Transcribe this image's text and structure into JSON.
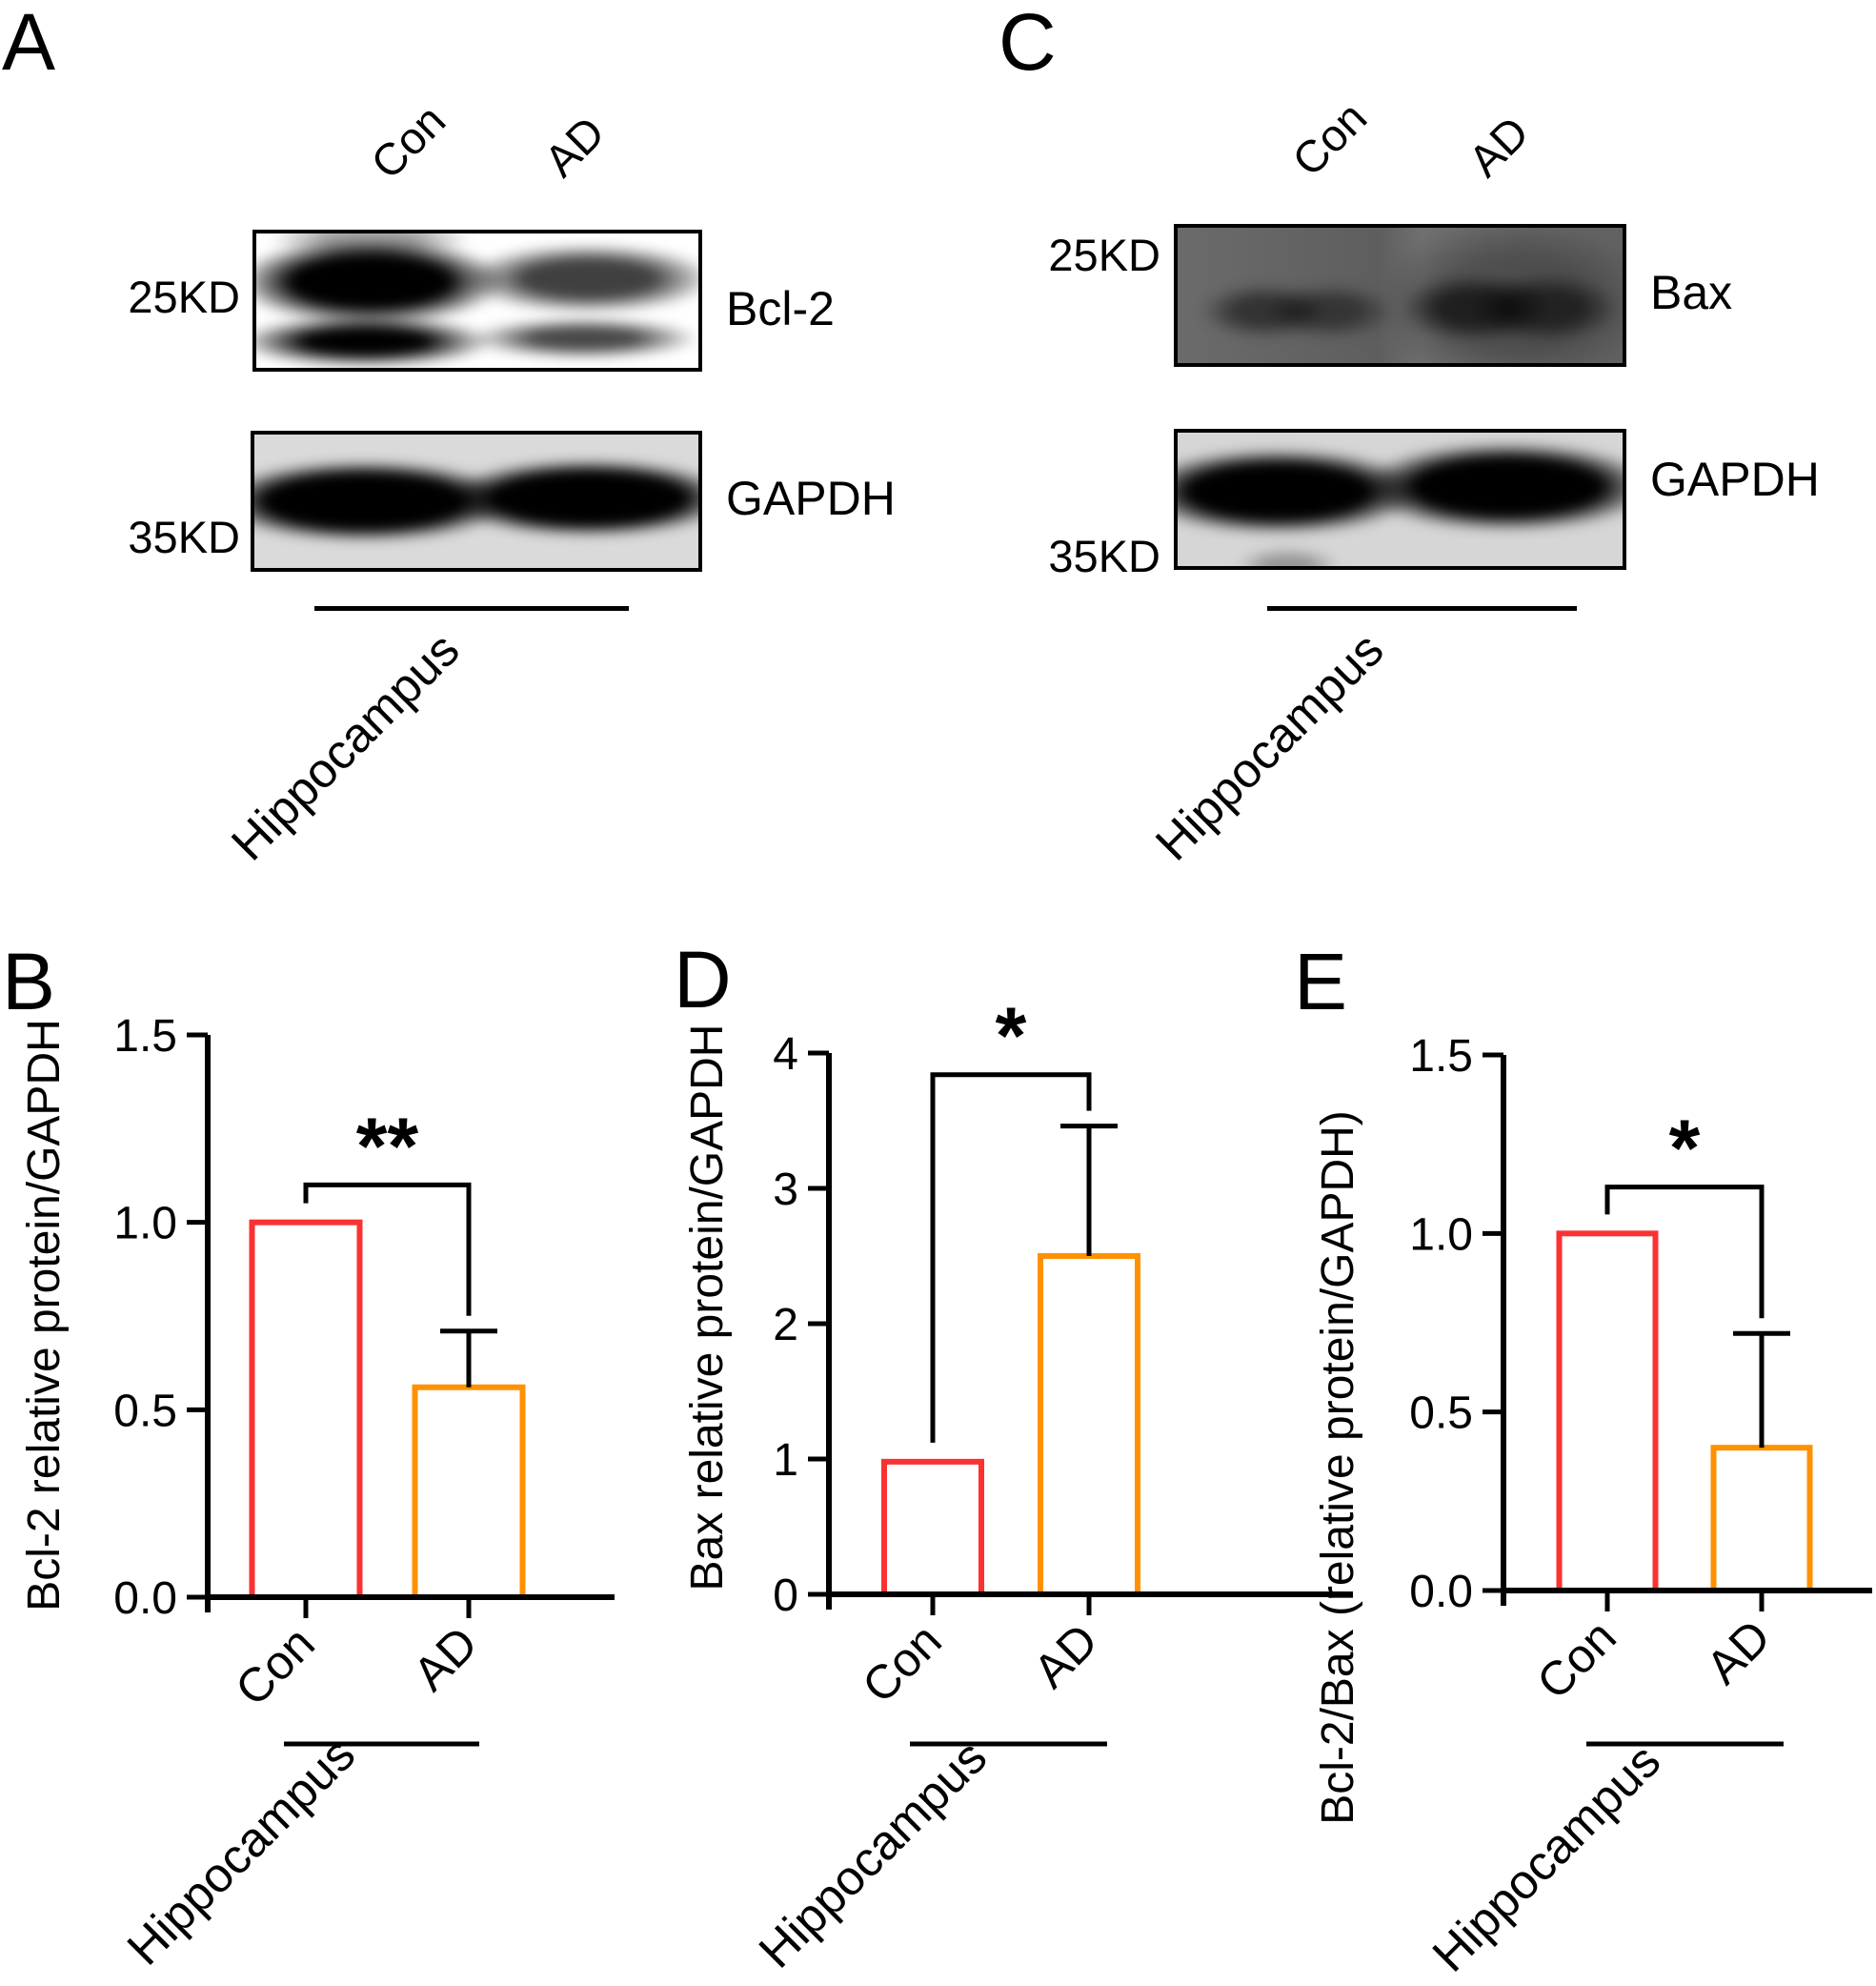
{
  "panels": {
    "blots": [
      {
        "label": "A",
        "lanes": [
          "Con",
          "AD"
        ],
        "rows": [
          {
            "marker": "25KD",
            "protein": "Bcl-2"
          },
          {
            "marker": "35KD",
            "protein": "GAPDH"
          }
        ],
        "group_label": "Hippocampus"
      },
      {
        "label": "C",
        "lanes": [
          "Con",
          "AD"
        ],
        "rows": [
          {
            "marker": "25KD",
            "protein": "Bax"
          },
          {
            "marker": "35KD",
            "protein": "GAPDH"
          }
        ],
        "group_label": "Hippocampus"
      }
    ]
  },
  "chart_data": [
    {
      "type": "bar",
      "panel_label": "B",
      "ylabel": "Bcl-2 relative protein/GAPDH",
      "xlabel": "",
      "categories": [
        "Con",
        "AD"
      ],
      "values": [
        1.0,
        0.56
      ],
      "errors": [
        0,
        0.15
      ],
      "ytick_labels": [
        "0.0",
        "0.5",
        "1.0",
        "1.5"
      ],
      "ylim": [
        0,
        1.5
      ],
      "grid": "off",
      "significance": "**",
      "sig_level_value": 1.1,
      "group_label": "Hippocampus",
      "bar_colors": [
        "#FA3232",
        "#FF9100"
      ]
    },
    {
      "type": "bar",
      "panel_label": "D",
      "ylabel": "Bax relative protein/GAPDH",
      "xlabel": "",
      "categories": [
        "Con",
        "AD"
      ],
      "values": [
        0.98,
        2.5
      ],
      "errors": [
        0,
        0.96
      ],
      "ytick_labels": [
        "0",
        "1",
        "2",
        "3",
        "4"
      ],
      "ylim": [
        0,
        4
      ],
      "grid": "off",
      "significance": "*",
      "sig_level_value": 3.84,
      "group_label": "Hippocampus",
      "bar_colors": [
        "#FA3232",
        "#FF9100"
      ]
    },
    {
      "type": "bar",
      "panel_label": "E",
      "ylabel": "Bcl-2/Bax (relative protein/GAPDH)",
      "xlabel": "",
      "categories": [
        "Con",
        "AD"
      ],
      "values": [
        1.0,
        0.4
      ],
      "errors": [
        0,
        0.32
      ],
      "ytick_labels": [
        "0.0",
        "0.5",
        "1.0",
        "1.5"
      ],
      "ylim": [
        0,
        1.5
      ],
      "grid": "off",
      "significance": "*",
      "sig_level_value": 1.13,
      "group_label": "Hippocampus",
      "bar_colors": [
        "#FA3232",
        "#FF9100"
      ]
    }
  ],
  "colors": {
    "control_bar": "#FA3232",
    "ad_bar": "#FF9100",
    "axis": "#000000",
    "gapdh_blot_background": "#dadada",
    "bax_blot_background": "#646464"
  }
}
